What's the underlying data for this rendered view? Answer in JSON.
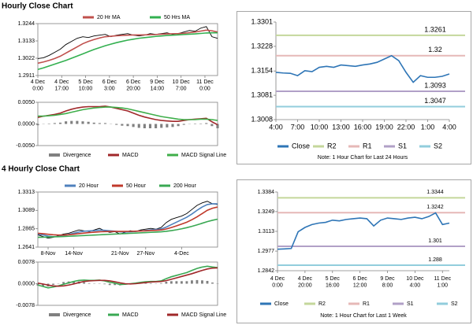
{
  "headings": [
    "Hourly Close Chart",
    "4 Hourly Close Chart"
  ],
  "chart_data": [
    {
      "type": "line",
      "legend": "top",
      "x": [
        0,
        4,
        8,
        12,
        16,
        20,
        24,
        28,
        32,
        36,
        40,
        44,
        48,
        52,
        56,
        60,
        64,
        68,
        72,
        76,
        80,
        84,
        88,
        92,
        96,
        100,
        104,
        108,
        112,
        116,
        120,
        124,
        128
      ],
      "xlim": [
        0,
        128
      ],
      "xticks": [
        {
          "value": 0,
          "label": "4 Dec\n0:00"
        },
        {
          "value": 17,
          "label": "4 Dec\n17:00"
        },
        {
          "value": 34,
          "label": "5 Dec\n10:00"
        },
        {
          "value": 51,
          "label": "6 Dec\n3:00"
        },
        {
          "value": 68,
          "label": "6 Dec\n20:00"
        },
        {
          "value": 85,
          "label": "9 Dec\n14:00"
        },
        {
          "value": 102,
          "label": "10 Dec\n7:00"
        },
        {
          "value": 119,
          "label": "11 Dec\n0:00"
        }
      ],
      "ylim": [
        1.2911,
        1.3244
      ],
      "yticks": [
        1.2911,
        1.3022,
        1.3133,
        1.3244
      ],
      "series": [
        {
          "color": "#000000",
          "values": [
            1.302,
            1.3025,
            1.304,
            1.306,
            1.308,
            1.311,
            1.313,
            1.315,
            1.316,
            1.3155,
            1.3165,
            1.317,
            1.3175,
            1.316,
            1.317,
            1.3175,
            1.318,
            1.317,
            1.3165,
            1.317,
            1.318,
            1.3175,
            1.318,
            1.3185,
            1.3175,
            1.318,
            1.319,
            1.32,
            1.3195,
            1.3215,
            1.3225,
            1.316,
            1.315
          ]
        },
        {
          "name": "20 Hr MA",
          "color": "#c0504d",
          "values": [
            1.299,
            1.2998,
            1.3008,
            1.302,
            1.3035,
            1.3055,
            1.3075,
            1.3095,
            1.3115,
            1.313,
            1.3142,
            1.3152,
            1.316,
            1.3163,
            1.3166,
            1.3168,
            1.317,
            1.3171,
            1.3171,
            1.3172,
            1.3173,
            1.3174,
            1.3176,
            1.3178,
            1.3179,
            1.318,
            1.3182,
            1.3186,
            1.319,
            1.3196,
            1.3202,
            1.3198,
            1.319
          ]
        },
        {
          "name": "50 Hrs MA",
          "color": "#33b050",
          "values": [
            1.295,
            1.296,
            1.2972,
            1.2984,
            1.2996,
            1.3008,
            1.3022,
            1.3036,
            1.305,
            1.3064,
            1.3078,
            1.309,
            1.3102,
            1.3112,
            1.3122,
            1.313,
            1.3138,
            1.3144,
            1.315,
            1.3154,
            1.3158,
            1.3162,
            1.3165,
            1.3168,
            1.317,
            1.3172,
            1.3174,
            1.3176,
            1.3178,
            1.3181,
            1.3184,
            1.3185,
            1.3185
          ]
        }
      ]
    },
    {
      "type": "combo",
      "legend": "bottom",
      "x": [
        0,
        4,
        8,
        12,
        16,
        20,
        24,
        28,
        32,
        36,
        40,
        44,
        48,
        52,
        56,
        60,
        64,
        68,
        72,
        76,
        80,
        84,
        88,
        92,
        96,
        100,
        104,
        108,
        112,
        116,
        120,
        124,
        128
      ],
      "xlim": [
        0,
        128
      ],
      "ylim": [
        -0.005,
        0.005
      ],
      "yticks": [
        {
          "value": 0.005,
          "label": "0.0050"
        },
        {
          "value": 0,
          "label": "0.0000"
        },
        {
          "value": -0.005,
          "label": "-0.0050"
        }
      ],
      "series": [
        {
          "name": "Divergence",
          "color": "#808080",
          "kind": "bar",
          "values": [
            -0.0003,
            0,
            0.0001,
            0.0002,
            0.0003,
            0.0006,
            0.0007,
            0.0007,
            0.0006,
            0.0005,
            0.0003,
            0.0002,
            0.0002,
            0,
            -0.0002,
            -0.0004,
            -0.0005,
            -0.0007,
            -0.0009,
            -0.001,
            -0.001,
            -0.001,
            -0.0009,
            -0.0008,
            -0.0007,
            -0.0005,
            -0.0002,
            0,
            0.0001,
            0.0001,
            0.0002,
            -0.0005,
            -0.001
          ]
        },
        {
          "name": "MACD",
          "color": "#a0282a",
          "values": [
            0.0015,
            0.0018,
            0.002,
            0.0022,
            0.0025,
            0.003,
            0.0034,
            0.0037,
            0.0039,
            0.004,
            0.004,
            0.004,
            0.0041,
            0.0039,
            0.0036,
            0.0033,
            0.003,
            0.0025,
            0.002,
            0.0016,
            0.0013,
            0.001,
            0.0008,
            0.0007,
            0.0006,
            0.0006,
            0.0008,
            0.001,
            0.0011,
            0.0012,
            0.0013,
            0.0005,
            -0.0002
          ]
        },
        {
          "name": "MACD Signal Line",
          "color": "#3fae4a",
          "values": [
            0.0018,
            0.0018,
            0.0019,
            0.002,
            0.0022,
            0.0024,
            0.0027,
            0.003,
            0.0033,
            0.0035,
            0.0037,
            0.0038,
            0.0039,
            0.0039,
            0.0038,
            0.0037,
            0.0035,
            0.0032,
            0.0029,
            0.0026,
            0.0023,
            0.002,
            0.0017,
            0.0015,
            0.0013,
            0.0011,
            0.001,
            0.001,
            0.001,
            0.0011,
            0.0011,
            0.001,
            0.0008
          ]
        }
      ]
    },
    {
      "type": "line",
      "legend": "bottom",
      "categories": [
        "4:00",
        null,
        null,
        "7:00",
        null,
        null,
        "10:00",
        null,
        null,
        "13:00",
        null,
        null,
        "16:00",
        null,
        null,
        "19:00",
        null,
        null,
        "22:00",
        null,
        null,
        "1:00",
        null,
        null,
        "4:00"
      ],
      "ylim": [
        1.3008,
        1.3301
      ],
      "yticks": [
        1.3008,
        1.3081,
        1.3154,
        1.3228,
        1.3301
      ],
      "series": [
        {
          "name": "Close",
          "color": "#2e75b6",
          "values": [
            1.315,
            1.3148,
            1.3147,
            1.314,
            1.3155,
            1.3152,
            1.3165,
            1.3168,
            1.3165,
            1.3172,
            1.317,
            1.3168,
            1.3172,
            1.3175,
            1.318,
            1.319,
            1.32,
            1.3185,
            1.315,
            1.312,
            1.314,
            1.3135,
            1.3135,
            1.3138,
            1.3145
          ]
        }
      ],
      "levels": [
        {
          "name": "R2",
          "color": "#c4d79b",
          "value": 1.3261
        },
        {
          "name": "R1",
          "color": "#e6b8b7",
          "value": 1.32
        },
        {
          "name": "S1",
          "color": "#b1a0c7",
          "value": 1.3093
        },
        {
          "name": "S2",
          "color": "#92cddc",
          "value": 1.3047
        }
      ],
      "note": "Note: 1 Hour Chart for Last 24 Hours"
    },
    {
      "type": "line",
      "legend": "top",
      "categories": [
        null,
        null,
        "8-Nov",
        null,
        null,
        null,
        null,
        "14-Nov",
        null,
        null,
        null,
        null,
        null,
        null,
        null,
        null,
        "21-Nov",
        null,
        null,
        null,
        null,
        "27-Nov",
        null,
        null,
        null,
        null,
        null,
        null,
        "4-Dec",
        null,
        null,
        null,
        null,
        null,
        null,
        null
      ],
      "ylim": [
        1.2641,
        1.3313
      ],
      "yticks": [
        1.2641,
        1.2865,
        1.3089,
        1.3313
      ],
      "series": [
        {
          "color": "#000000",
          "values": [
            1.279,
            1.277,
            1.275,
            1.276,
            1.278,
            1.28,
            1.281,
            1.283,
            1.285,
            1.284,
            1.283,
            1.285,
            1.287,
            1.284,
            1.282,
            1.283,
            1.28,
            1.282,
            1.284,
            1.283,
            1.285,
            1.286,
            1.287,
            1.286,
            1.288,
            1.294,
            1.298,
            1.3,
            1.302,
            1.305,
            1.31,
            1.315,
            1.318,
            1.32,
            1.317,
            1.316
          ]
        },
        {
          "name": "20 Hour",
          "color": "#4f81bd",
          "values": [
            1.28,
            1.279,
            1.2775,
            1.2768,
            1.277,
            1.278,
            1.2795,
            1.281,
            1.2825,
            1.2835,
            1.2838,
            1.2842,
            1.2848,
            1.2846,
            1.284,
            1.2835,
            1.2828,
            1.2825,
            1.2828,
            1.2832,
            1.2838,
            1.2845,
            1.2852,
            1.2856,
            1.2862,
            1.2885,
            1.2915,
            1.2945,
            1.2975,
            1.3005,
            1.3045,
            1.309,
            1.313,
            1.316,
            1.317,
            1.3168
          ]
        },
        {
          "name": "50 Hour",
          "color": "#c0392b",
          "values": [
            1.281,
            1.2805,
            1.2798,
            1.2792,
            1.2788,
            1.2788,
            1.2792,
            1.2798,
            1.2805,
            1.2812,
            1.2818,
            1.2823,
            1.2828,
            1.283,
            1.2831,
            1.2832,
            1.2832,
            1.2832,
            1.2833,
            1.2835,
            1.2837,
            1.284,
            1.2843,
            1.2846,
            1.285,
            1.2862,
            1.288,
            1.29,
            1.2922,
            1.2945,
            1.2975,
            1.301,
            1.305,
            1.309,
            1.3115,
            1.313
          ]
        },
        {
          "name": "200 Hour",
          "color": "#3aa853",
          "values": [
            1.276,
            1.2762,
            1.2764,
            1.2766,
            1.2768,
            1.277,
            1.2773,
            1.2776,
            1.2779,
            1.2782,
            1.2785,
            1.2788,
            1.2791,
            1.2794,
            1.2797,
            1.28,
            1.2803,
            1.2806,
            1.2809,
            1.2812,
            1.2815,
            1.2818,
            1.2821,
            1.2824,
            1.2828,
            1.2834,
            1.2842,
            1.2852,
            1.2864,
            1.2878,
            1.2894,
            1.2912,
            1.2932,
            1.2952,
            1.2968,
            1.2982
          ]
        }
      ]
    },
    {
      "type": "combo",
      "legend": "bottom",
      "categories": [
        null,
        null,
        null,
        null,
        null,
        null,
        null,
        null,
        null,
        null,
        null,
        null,
        null,
        null,
        null,
        null,
        null,
        null,
        null,
        null,
        null,
        null,
        null,
        null,
        null,
        null,
        null,
        null,
        null,
        null,
        null,
        null,
        null,
        null,
        null,
        null
      ],
      "ylim": [
        -0.0078,
        0.0078
      ],
      "yticks": [
        {
          "value": 0.0078,
          "label": "0.0078"
        },
        {
          "value": 0,
          "label": "0.0000"
        },
        {
          "value": -0.0078,
          "label": "-0.0078"
        }
      ],
      "series": [
        {
          "name": "Divergence",
          "color": "#808080",
          "kind": "bar",
          "values": [
            -0.0007,
            -0.0009,
            -0.001,
            -0.0004,
            0.0001,
            0.0006,
            0.0008,
            0.0009,
            0.0008,
            0.0005,
            0.0002,
            0.0001,
            0.0001,
            -0.0002,
            -0.0005,
            -0.0005,
            -0.0006,
            -0.0002,
            0.0001,
            0.0002,
            0.0003,
            0.0003,
            0.0002,
            0.0001,
            0.0002,
            0.0007,
            0.0009,
            0.0009,
            0.0009,
            0.0009,
            0.0012,
            0.0013,
            0.0012,
            0.001,
            0.0004,
            0.0001
          ]
        },
        {
          "name": "MACD",
          "color": "#3aa853",
          "values": [
            -0.0005,
            -0.001,
            -0.0015,
            -0.0012,
            -0.0008,
            -0.0002,
            0.0003,
            0.0008,
            0.0012,
            0.0013,
            0.0012,
            0.0012,
            0.0013,
            0.001,
            0.0005,
            0.0002,
            -0.0003,
            -0.0002,
            0,
            0.0002,
            0.0005,
            0.0007,
            0.0008,
            0.0008,
            0.001,
            0.0018,
            0.0025,
            0.003,
            0.0035,
            0.004,
            0.0048,
            0.0055,
            0.006,
            0.0063,
            0.006,
            0.0058
          ]
        },
        {
          "name": "MACD Signal Line",
          "color": "#a0282a",
          "values": [
            0.0002,
            -0.0001,
            -0.0005,
            -0.0008,
            -0.0009,
            -0.0008,
            -0.0005,
            -0.0001,
            0.0004,
            0.0008,
            0.001,
            0.0011,
            0.0012,
            0.0012,
            0.001,
            0.0007,
            0.0003,
            0,
            -0.0001,
            0,
            0.0002,
            0.0004,
            0.0006,
            0.0007,
            0.0008,
            0.0011,
            0.0016,
            0.0021,
            0.0026,
            0.0031,
            0.0036,
            0.0042,
            0.0048,
            0.0053,
            0.0056,
            0.0057
          ]
        }
      ]
    },
    {
      "type": "line",
      "legend": "bottom",
      "categories": [
        "4 Dec\n0:00",
        null,
        null,
        null,
        "4 Dec\n20:00",
        null,
        null,
        null,
        "5 Dec\n16:00",
        null,
        null,
        null,
        "6 Dec\n12:00",
        null,
        null,
        null,
        "9 Dec\n8:00",
        null,
        null,
        null,
        "10 Dec\n4:00",
        null,
        null,
        null,
        "11 Dec\n1:00",
        null
      ],
      "ylim": [
        1.2842,
        1.3384
      ],
      "yticks": [
        1.2842,
        1.2977,
        1.3113,
        1.3249,
        1.3384
      ],
      "series": [
        {
          "name": "Close",
          "color": "#2e75b6",
          "values": [
            1.299,
            1.2992,
            1.2995,
            1.311,
            1.314,
            1.316,
            1.317,
            1.3175,
            1.319,
            1.3185,
            1.3195,
            1.32,
            1.3205,
            1.32,
            1.315,
            1.319,
            1.3205,
            1.32,
            1.3195,
            1.3205,
            1.321,
            1.32,
            1.3215,
            1.324,
            1.316,
            1.317
          ]
        }
      ],
      "levels": [
        {
          "name": "R2",
          "color": "#c4d79b",
          "value": 1.3344
        },
        {
          "name": "R1",
          "color": "#e6b8b7",
          "value": 1.3242
        },
        {
          "name": "S1",
          "color": "#b1a0c7",
          "value": 1.301
        },
        {
          "name": "S2",
          "color": "#92cddc",
          "value": 1.288
        }
      ],
      "note": "Note: 1 Hour Chart for Last 1 Week"
    }
  ]
}
